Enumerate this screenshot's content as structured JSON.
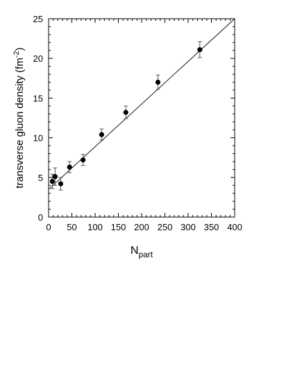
{
  "chart_data": {
    "type": "scatter",
    "title": "",
    "xlabel_main": "N",
    "xlabel_sub": "part",
    "ylabel_main": "transverse gluon density (fm",
    "ylabel_sup": "-2",
    "ylabel_close": ")",
    "xlim": [
      0,
      400
    ],
    "ylim": [
      0,
      25
    ],
    "x_ticks": [
      0,
      50,
      100,
      150,
      200,
      250,
      300,
      350,
      400
    ],
    "x_tick_labels": [
      "0",
      "50",
      "100",
      "150",
      "200",
      "250",
      "300",
      "350",
      "400"
    ],
    "y_ticks": [
      0,
      5,
      10,
      15,
      20,
      25
    ],
    "y_tick_labels": [
      "0",
      "5",
      "10",
      "15",
      "20",
      "25"
    ],
    "grid": false,
    "series": [
      {
        "kind": "points",
        "x": [
          8,
          14,
          26,
          45,
          74,
          114,
          166,
          235,
          325
        ],
        "y": [
          4.5,
          5.1,
          4.2,
          6.3,
          7.2,
          10.4,
          13.2,
          17.0,
          21.1
        ],
        "yerr": [
          0.9,
          1.1,
          0.8,
          0.7,
          0.7,
          0.7,
          0.8,
          0.9,
          1.0
        ],
        "color": "#000000"
      },
      {
        "kind": "fit-line",
        "x": [
          0,
          400
        ],
        "y": [
          3.5,
          25.0
        ],
        "color": "#000000"
      }
    ]
  }
}
